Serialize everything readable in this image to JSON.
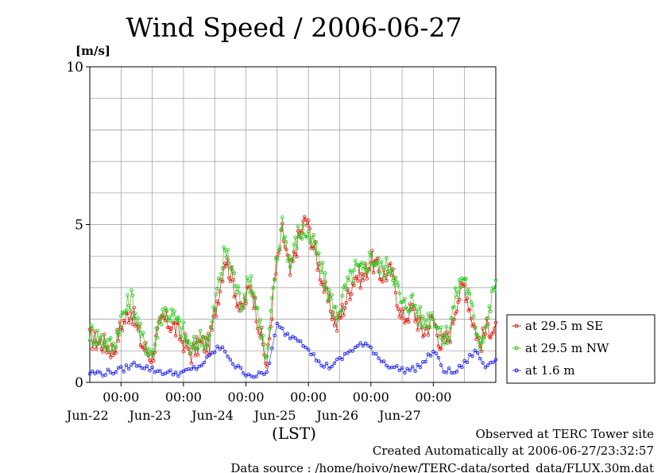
{
  "chart_data": {
    "type": "line",
    "title": "Wind Speed / 2006-06-27",
    "ylabel": "[m/s]",
    "xlabel": "(LST)",
    "ylim": [
      0,
      10
    ],
    "xlim": [
      "2006-06-21T12:00",
      "2006-06-28T00:00"
    ],
    "yticks": [
      "0",
      "5",
      "10"
    ],
    "xticks": [
      {
        "x": "2006-06-22T00:00",
        "time": "00:00",
        "date": "Jun-22"
      },
      {
        "x": "2006-06-23T00:00",
        "time": "00:00",
        "date": "Jun-23"
      },
      {
        "x": "2006-06-24T00:00",
        "time": "00:00",
        "date": "Jun-24"
      },
      {
        "x": "2006-06-25T00:00",
        "time": "00:00",
        "date": "Jun-25"
      },
      {
        "x": "2006-06-26T00:00",
        "time": "00:00",
        "date": "Jun-26"
      },
      {
        "x": "2006-06-27T00:00",
        "time": "00:00",
        "date": "Jun-27"
      }
    ],
    "grid": true,
    "legend_position": "right",
    "series": [
      {
        "name": "at 29.5 m SE",
        "color": "#ff0000",
        "x": [
          "2006-06-21T12:00",
          "2006-06-21T18:00",
          "2006-06-21T21:00",
          "2006-06-22T00:00",
          "2006-06-22T04:00",
          "2006-06-22T08:00",
          "2006-06-22T12:00",
          "2006-06-22T14:00",
          "2006-06-22T16:00",
          "2006-06-22T20:00",
          "2006-06-23T00:00",
          "2006-06-23T03:00",
          "2006-06-23T06:00",
          "2006-06-23T10:00",
          "2006-06-23T13:00",
          "2006-06-23T16:00",
          "2006-06-23T19:00",
          "2006-06-23T22:00",
          "2006-06-24T02:00",
          "2006-06-24T06:00",
          "2006-06-24T08:00",
          "2006-06-24T11:00",
          "2006-06-24T14:00",
          "2006-06-24T17:00",
          "2006-06-24T20:00",
          "2006-06-24T23:00",
          "2006-06-25T03:00",
          "2006-06-25T07:00",
          "2006-06-25T11:00",
          "2006-06-25T14:00",
          "2006-06-25T18:00",
          "2006-06-25T21:00",
          "2006-06-26T00:00",
          "2006-06-26T04:00",
          "2006-06-26T08:00",
          "2006-06-26T12:00",
          "2006-06-26T16:00",
          "2006-06-26T20:00",
          "2006-06-27T00:00",
          "2006-06-27T03:00",
          "2006-06-27T06:00",
          "2006-06-27T09:00",
          "2006-06-27T12:00",
          "2006-06-27T15:00",
          "2006-06-27T18:00",
          "2006-06-27T21:00",
          "2006-06-28T00:00"
        ],
        "y": [
          1.4,
          1.2,
          1.0,
          1.8,
          2.3,
          1.2,
          0.8,
          1.5,
          2.0,
          1.8,
          1.3,
          0.9,
          1.2,
          1.2,
          2.6,
          4.0,
          3.2,
          2.2,
          3.1,
          1.4,
          0.5,
          3.2,
          4.8,
          3.4,
          4.5,
          5.2,
          4.0,
          2.7,
          1.8,
          2.5,
          3.4,
          3.3,
          3.9,
          3.4,
          3.5,
          2.0,
          2.3,
          1.6,
          2.0,
          1.2,
          1.4,
          2.6,
          3.1,
          2.0,
          1.2,
          1.8,
          1.6
        ]
      },
      {
        "name": "at 29.5 m NW",
        "color": "#00cc00",
        "x": [
          "2006-06-21T12:00",
          "2006-06-21T18:00",
          "2006-06-21T21:00",
          "2006-06-22T00:00",
          "2006-06-22T04:00",
          "2006-06-22T08:00",
          "2006-06-22T12:00",
          "2006-06-22T14:00",
          "2006-06-22T16:00",
          "2006-06-22T20:00",
          "2006-06-23T00:00",
          "2006-06-23T03:00",
          "2006-06-23T06:00",
          "2006-06-23T10:00",
          "2006-06-23T13:00",
          "2006-06-23T16:00",
          "2006-06-23T19:00",
          "2006-06-23T22:00",
          "2006-06-24T02:00",
          "2006-06-24T06:00",
          "2006-06-24T08:00",
          "2006-06-24T11:00",
          "2006-06-24T14:00",
          "2006-06-24T17:00",
          "2006-06-24T20:00",
          "2006-06-24T23:00",
          "2006-06-25T03:00",
          "2006-06-25T07:00",
          "2006-06-25T11:00",
          "2006-06-25T14:00",
          "2006-06-25T18:00",
          "2006-06-25T21:00",
          "2006-06-26T00:00",
          "2006-06-26T04:00",
          "2006-06-26T08:00",
          "2006-06-26T12:00",
          "2006-06-26T16:00",
          "2006-06-26T20:00",
          "2006-06-27T00:00",
          "2006-06-27T03:00",
          "2006-06-27T06:00",
          "2006-06-27T09:00",
          "2006-06-27T12:00",
          "2006-06-27T15:00",
          "2006-06-27T18:00",
          "2006-06-27T21:00",
          "2006-06-28T00:00"
        ],
        "y": [
          1.6,
          1.3,
          1.1,
          2.0,
          2.7,
          1.4,
          0.9,
          1.7,
          2.3,
          2.1,
          1.6,
          1.0,
          1.4,
          1.4,
          2.9,
          4.2,
          3.5,
          2.5,
          3.3,
          1.6,
          0.6,
          3.4,
          5.1,
          3.7,
          4.7,
          4.8,
          4.2,
          3.0,
          2.1,
          2.9,
          3.6,
          3.5,
          4.0,
          3.6,
          3.7,
          2.4,
          2.6,
          1.9,
          2.2,
          1.4,
          1.6,
          2.9,
          3.4,
          2.2,
          1.3,
          2.0,
          3.3
        ]
      },
      {
        "name": "at 1.6 m",
        "color": "#0000ff",
        "x": [
          "2006-06-21T12:00",
          "2006-06-21T18:00",
          "2006-06-22T00:00",
          "2006-06-22T06:00",
          "2006-06-22T12:00",
          "2006-06-22T18:00",
          "2006-06-23T00:00",
          "2006-06-23T06:00",
          "2006-06-23T10:00",
          "2006-06-23T13:00",
          "2006-06-23T16:00",
          "2006-06-23T20:00",
          "2006-06-24T00:00",
          "2006-06-24T04:00",
          "2006-06-24T08:00",
          "2006-06-24T12:00",
          "2006-06-24T16:00",
          "2006-06-24T20:00",
          "2006-06-25T00:00",
          "2006-06-25T04:00",
          "2006-06-25T08:00",
          "2006-06-25T12:00",
          "2006-06-25T16:00",
          "2006-06-25T20:00",
          "2006-06-26T00:00",
          "2006-06-26T04:00",
          "2006-06-26T08:00",
          "2006-06-26T12:00",
          "2006-06-26T16:00",
          "2006-06-26T20:00",
          "2006-06-27T00:00",
          "2006-06-27T04:00",
          "2006-06-27T08:00",
          "2006-06-27T12:00",
          "2006-06-27T16:00",
          "2006-06-27T20:00",
          "2006-06-28T00:00"
        ],
        "y": [
          0.3,
          0.3,
          0.4,
          0.6,
          0.4,
          0.3,
          0.3,
          0.5,
          0.8,
          1.1,
          1.0,
          0.5,
          0.3,
          0.2,
          0.3,
          1.8,
          1.5,
          1.4,
          1.1,
          0.6,
          0.5,
          0.7,
          1.0,
          1.2,
          1.1,
          0.7,
          0.5,
          0.4,
          0.4,
          0.6,
          1.0,
          0.4,
          0.3,
          0.6,
          1.0,
          0.5,
          0.8
        ]
      }
    ]
  },
  "footer": {
    "observed": "Observed at TERC Tower site",
    "created": "Created Automatically at 2006-06-27/23:32:57",
    "source": "Data source : /home/hoivo/new/TERC-data/sorted_data/FLUX.30m.dat"
  }
}
